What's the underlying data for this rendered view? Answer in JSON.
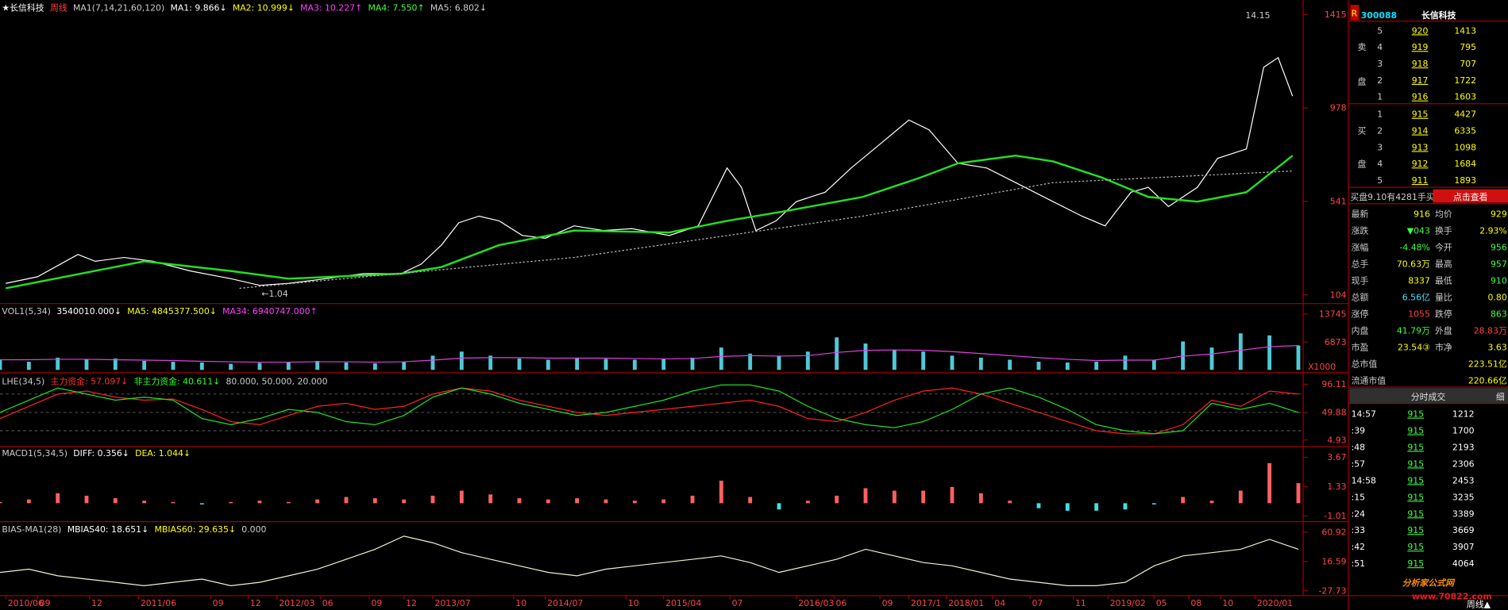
{
  "chart_data": [
    {
      "type": "line",
      "header": [
        "★长信科技",
        "周线",
        "MA1(7,14,21,60,120)",
        "MA1: 9.866↓",
        "MA2: 10.999↓",
        "MA3: 10.227↑",
        "MA4: 7.550↑",
        "MA5: 6.802↓"
      ],
      "annotations": [
        "14.15",
        "←1.04"
      ],
      "xlim": [
        0,
        450
      ],
      "ylim": [
        104,
        1415
      ],
      "yticks": [
        104,
        541,
        978,
        1415
      ],
      "series": [
        {
          "type": "line",
          "color": "#ffffff",
          "x": [
            2,
            13,
            27,
            33,
            43,
            53,
            66,
            80,
            90,
            100,
            113,
            126,
            139,
            146,
            153,
            159,
            166,
            173,
            181,
            189,
            199,
            209,
            219,
            232,
            242,
            252,
            257,
            262,
            269,
            276,
            286,
            295,
            305,
            315,
            322,
            332,
            342,
            352,
            365,
            375,
            383,
            392,
            398,
            405,
            415,
            422,
            432,
            438,
            443,
            448
          ],
          "values": [
            158,
            189,
            293,
            261,
            279,
            261,
            216,
            180,
            149,
            158,
            180,
            203,
            203,
            248,
            337,
            441,
            472,
            450,
            382,
            369,
            427,
            405,
            414,
            382,
            427,
            697,
            607,
            405,
            450,
            540,
            584,
            697,
            809,
            921,
            876,
            719,
            697,
            629,
            540,
            472,
            427,
            584,
            607,
            517,
            607,
            742,
            786,
            1168,
            1213,
            1033
          ]
        },
        {
          "type": "line",
          "color": "#22e022",
          "x": [
            2,
            50,
            80,
            100,
            139,
            153,
            173,
            199,
            232,
            252,
            272,
            299,
            319,
            332,
            352,
            365,
            382,
            398,
            415,
            432,
            448
          ],
          "values": [
            135,
            261,
            216,
            180,
            203,
            234,
            337,
            405,
            396,
            450,
            495,
            562,
            652,
            719,
            755,
            728,
            652,
            562,
            540,
            584,
            755
          ]
        },
        {
          "type": "line",
          "color": "#bbbbbb",
          "dashed": true,
          "x": [
            83,
            199,
            299,
            365,
            448
          ],
          "values": [
            135,
            279,
            472,
            629,
            683
          ]
        }
      ]
    },
    {
      "type": "bar",
      "header": [
        "VOL1(5,34)",
        "3540010.000↓",
        "MA5: 4845377.500↓",
        "MA34: 6940747.000↑"
      ],
      "unit_label": "X1000",
      "x": [
        0,
        10,
        20,
        30,
        40,
        50,
        60,
        70,
        80,
        90,
        100,
        110,
        120,
        130,
        140,
        150,
        160,
        170,
        180,
        190,
        200,
        210,
        220,
        230,
        240,
        250,
        260,
        270,
        280,
        290,
        300,
        310,
        320,
        330,
        340,
        350,
        360,
        370,
        380,
        390,
        400,
        410,
        420,
        430,
        440,
        450
      ],
      "xlim": [
        0,
        450
      ],
      "ylim": [
        0,
        13745
      ],
      "yticks": [
        6873,
        13745
      ],
      "series": [
        {
          "type": "bar",
          "color": "#4ec9d8",
          "values": [
            2500,
            2000,
            3000,
            2500,
            2800,
            2200,
            2000,
            1800,
            1500,
            1700,
            2000,
            2200,
            1800,
            1600,
            2000,
            3500,
            4500,
            3500,
            2800,
            2500,
            3000,
            2700,
            2500,
            2600,
            3000,
            5500,
            4000,
            3500,
            4500,
            8000,
            6500,
            5000,
            4500,
            3500,
            3000,
            2500,
            2000,
            1800,
            2000,
            3500,
            2500,
            7000,
            5500,
            9000,
            8500,
            6000
          ]
        },
        {
          "type": "line",
          "color": "#e040e0",
          "values": [
            2500,
            2500,
            2600,
            2600,
            2500,
            2400,
            2300,
            2100,
            2000,
            1900,
            1900,
            2000,
            2000,
            1900,
            2000,
            2400,
            2900,
            3000,
            3000,
            2900,
            2900,
            2900,
            2800,
            2700,
            2800,
            3300,
            3500,
            3400,
            3500,
            4300,
            4800,
            4900,
            4800,
            4500,
            4000,
            3500,
            3000,
            2600,
            2300,
            2400,
            2400,
            3400,
            3900,
            4800,
            5700,
            6000
          ]
        }
      ]
    },
    {
      "type": "line",
      "header": [
        "LHE(34,5)",
        "主力资金: 57.097↓",
        "非主力资金: 40.611↓",
        "80.000, 50.000, 20.000"
      ],
      "levels": [
        80,
        50,
        20
      ],
      "x": [
        0,
        10,
        20,
        30,
        40,
        50,
        60,
        70,
        80,
        90,
        100,
        110,
        120,
        130,
        140,
        150,
        160,
        170,
        180,
        190,
        200,
        210,
        220,
        230,
        240,
        250,
        260,
        270,
        280,
        290,
        300,
        310,
        320,
        330,
        340,
        350,
        360,
        370,
        380,
        390,
        400,
        410,
        420,
        430,
        440,
        450
      ],
      "xlim": [
        0,
        450
      ],
      "ylim": [
        4.93,
        96.11
      ],
      "yticks": [
        4.93,
        49.88,
        96.11
      ],
      "series": [
        {
          "type": "line",
          "color": "#ff2020",
          "values": [
            40,
            60,
            80,
            85,
            75,
            70,
            72,
            55,
            35,
            30,
            45,
            60,
            65,
            55,
            60,
            80,
            90,
            85,
            70,
            60,
            50,
            45,
            50,
            55,
            60,
            65,
            70,
            60,
            40,
            35,
            50,
            70,
            85,
            90,
            80,
            65,
            50,
            35,
            20,
            15,
            15,
            30,
            70,
            60,
            85,
            80
          ]
        },
        {
          "type": "line",
          "color": "#20e020",
          "values": [
            50,
            70,
            90,
            80,
            70,
            75,
            70,
            40,
            30,
            40,
            55,
            50,
            35,
            30,
            45,
            75,
            90,
            80,
            65,
            55,
            45,
            50,
            60,
            70,
            85,
            95,
            95,
            85,
            60,
            40,
            30,
            25,
            35,
            55,
            80,
            90,
            75,
            55,
            30,
            20,
            15,
            20,
            65,
            55,
            65,
            50
          ]
        }
      ]
    },
    {
      "type": "bar",
      "header": [
        "MACD1(5,34,5)",
        "DIFF: 0.356↓",
        "DEA: 1.044↓"
      ],
      "x": [
        0,
        10,
        20,
        30,
        40,
        50,
        60,
        70,
        80,
        90,
        100,
        110,
        120,
        130,
        140,
        150,
        160,
        170,
        180,
        190,
        200,
        210,
        220,
        230,
        240,
        250,
        260,
        270,
        280,
        290,
        300,
        310,
        320,
        330,
        340,
        350,
        360,
        370,
        380,
        390,
        400,
        410,
        420,
        430,
        440,
        450
      ],
      "xlim": [
        0,
        450
      ],
      "ylim": [
        -1.01,
        3.67
      ],
      "yticks": [
        -1.01,
        1.33,
        3.67
      ],
      "series": [
        {
          "type": "bar",
          "color": "#ff6060",
          "neg_color": "#40e0e0",
          "values": [
            0.1,
            0.3,
            0.8,
            0.6,
            0.4,
            0.2,
            0.1,
            -0.1,
            0.1,
            0.2,
            0.1,
            0.3,
            0.5,
            0.4,
            0.3,
            0.6,
            1.0,
            0.7,
            0.4,
            0.3,
            0.4,
            0.3,
            0.2,
            0.3,
            0.6,
            1.8,
            0.5,
            -0.5,
            0.2,
            0.6,
            1.2,
            1.0,
            1.0,
            1.3,
            0.8,
            0.2,
            -0.4,
            -0.6,
            -0.6,
            -0.5,
            -0.1,
            0.5,
            0.2,
            1.0,
            3.2,
            1.6
          ]
        }
      ]
    },
    {
      "type": "line",
      "header": [
        "BIAS-MA1(28)",
        "MBIAS40: 18.651↓",
        "MBIAS60: 29.635↓",
        "0.000"
      ],
      "x": [
        0,
        10,
        20,
        30,
        40,
        50,
        60,
        70,
        80,
        90,
        100,
        110,
        120,
        130,
        140,
        150,
        160,
        170,
        180,
        190,
        200,
        210,
        220,
        230,
        240,
        250,
        260,
        270,
        280,
        290,
        300,
        310,
        320,
        330,
        340,
        350,
        360,
        370,
        380,
        390,
        400,
        410,
        420,
        430,
        440,
        450
      ],
      "xlim": [
        0,
        450
      ],
      "ylim": [
        -27.73,
        60.92
      ],
      "yticks": [
        -27.73,
        16.59,
        60.92
      ],
      "xticks": [
        {
          "value": 2,
          "label": "2010/06"
        },
        {
          "value": 13,
          "label": "09"
        },
        {
          "value": 31,
          "label": "12"
        },
        {
          "value": 48,
          "label": "2011/06"
        },
        {
          "value": 73,
          "label": "09"
        },
        {
          "value": 86,
          "label": "12"
        },
        {
          "value": 96,
          "label": "2012/03"
        },
        {
          "value": 111,
          "label": "06"
        },
        {
          "value": 128,
          "label": "09"
        },
        {
          "value": 140,
          "label": "12"
        },
        {
          "value": 150,
          "label": "2013/07"
        },
        {
          "value": 178,
          "label": "10"
        },
        {
          "value": 189,
          "label": "2014/07"
        },
        {
          "value": 217,
          "label": "10"
        },
        {
          "value": 230,
          "label": "2015/04"
        },
        {
          "value": 253,
          "label": "07"
        },
        {
          "value": 276,
          "label": "2016/03"
        },
        {
          "value": 289,
          "label": "06"
        },
        {
          "value": 305,
          "label": "09"
        },
        {
          "value": 315,
          "label": "2017/1"
        },
        {
          "value": 328,
          "label": "2018/01"
        },
        {
          "value": 344,
          "label": "04"
        },
        {
          "value": 357,
          "label": "07"
        },
        {
          "value": 372,
          "label": "11"
        },
        {
          "value": 384,
          "label": "2019/02"
        },
        {
          "value": 400,
          "label": "05"
        },
        {
          "value": 412,
          "label": "08"
        },
        {
          "value": 423,
          "label": "10"
        },
        {
          "value": 435,
          "label": "2020/01"
        }
      ],
      "series": [
        {
          "type": "line",
          "color": "#f0f0d0",
          "values": [
            0,
            5,
            -5,
            -10,
            -15,
            -20,
            -15,
            -10,
            -20,
            -15,
            -5,
            5,
            20,
            35,
            55,
            45,
            30,
            20,
            10,
            0,
            -5,
            5,
            10,
            15,
            20,
            25,
            15,
            0,
            10,
            20,
            35,
            25,
            15,
            10,
            0,
            -10,
            -15,
            -20,
            -20,
            -15,
            10,
            25,
            30,
            35,
            50,
            35
          ]
        }
      ]
    }
  ],
  "quote": {
    "badge": "R",
    "code": "300088",
    "name": "长信科技",
    "sell_label": [
      "卖",
      "盘"
    ],
    "buy_label": [
      "买",
      "盘"
    ],
    "sell": [
      [
        5,
        920,
        1413
      ],
      [
        4,
        919,
        795
      ],
      [
        3,
        918,
        707
      ],
      [
        2,
        917,
        1722
      ],
      [
        1,
        916,
        1603
      ]
    ],
    "buy": [
      [
        1,
        915,
        4427
      ],
      [
        2,
        914,
        6335
      ],
      [
        3,
        913,
        1098
      ],
      [
        4,
        912,
        1684
      ],
      [
        5,
        911,
        1893
      ]
    ],
    "notice": "买盘9.10有4281手买",
    "button": "点击查看",
    "stats": [
      [
        "最新",
        916,
        "均价",
        929
      ],
      [
        "涨跌",
        "▼043",
        "换手",
        "2.93%"
      ],
      [
        "涨幅",
        "-4.48%",
        "今开",
        956
      ],
      [
        "总手",
        "70.63万",
        "最高",
        957
      ],
      [
        "现手",
        8337,
        "最低",
        910
      ],
      [
        "总额",
        "6.56亿",
        "量比",
        "0.80"
      ],
      [
        "涨停",
        1055,
        "跌停",
        863
      ],
      [
        "内盘",
        "41.79万",
        "外盘",
        "28.83万"
      ],
      [
        "市盈",
        "23.54③",
        "市净",
        3.63
      ]
    ],
    "caps": [
      [
        "总市值",
        "223.51亿"
      ],
      [
        "流通市值",
        "220.66亿"
      ]
    ]
  },
  "trades": {
    "title": "分时成交",
    "detail": "细",
    "rows": [
      [
        "14:57",
        915,
        1212
      ],
      [
        ":39",
        915,
        1700
      ],
      [
        ":48",
        915,
        2193
      ],
      [
        ":57",
        915,
        2306
      ],
      [
        "14:58",
        915,
        2453
      ],
      [
        ":15",
        915,
        3235
      ],
      [
        ":24",
        915,
        3389
      ],
      [
        ":33",
        915,
        3669
      ],
      [
        ":42",
        915,
        3907
      ],
      [
        ":51",
        915,
        4064
      ]
    ]
  },
  "period_button": "周线▲",
  "watermark": {
    "title": "分析家公式网",
    "url": "www.70822.com"
  }
}
